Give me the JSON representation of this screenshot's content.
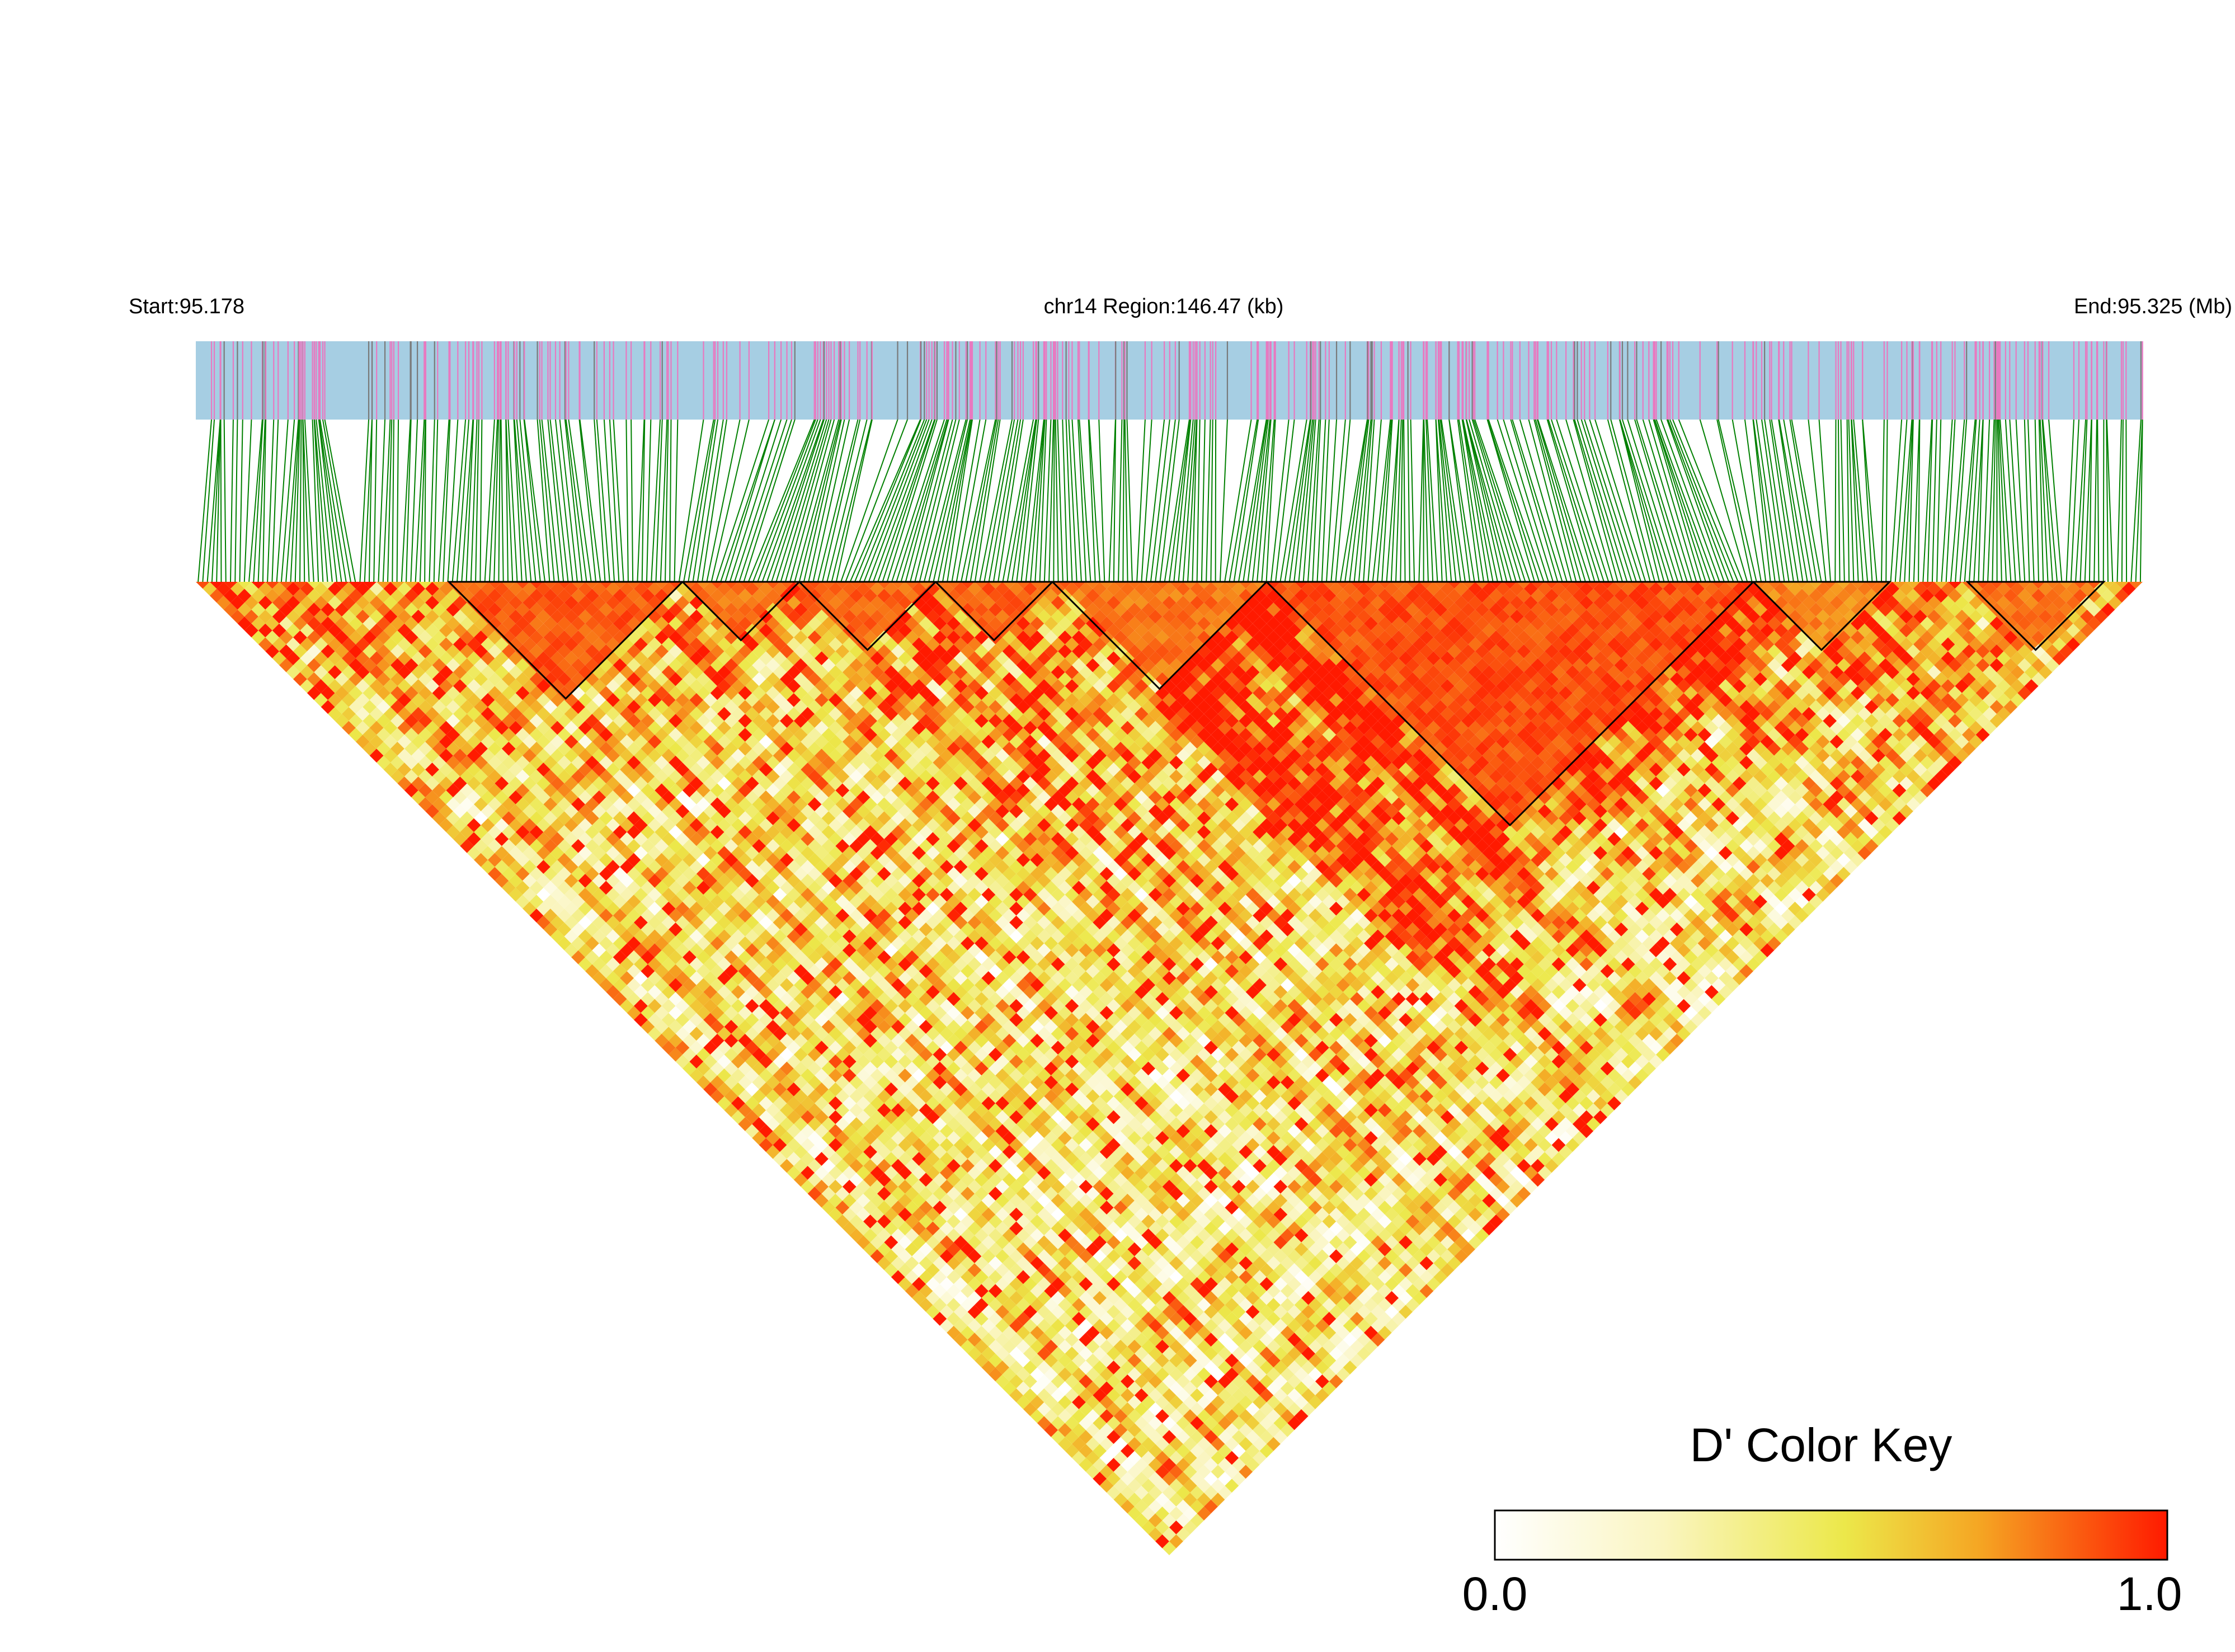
{
  "header": {
    "start_label": "Start:95.178",
    "region_label": "chr14 Region:146.47 (kb)",
    "end_label": "End:95.325 (Mb)"
  },
  "legend": {
    "title": "D' Color Key",
    "min_label": "0.0",
    "max_label": "1.0",
    "colors": [
      "#ffffff",
      "#f2e84a",
      "#f5a623",
      "#ff1a00"
    ]
  },
  "colors": {
    "track_background": "#a6cee3",
    "snp_tick": "#e879c0",
    "snp_tick_alt": "#7a7a7a",
    "connector_line": "#008000",
    "block_outline": "#000000"
  },
  "chart_data": {
    "type": "heatmap",
    "measure": "D'",
    "chromosome": "chr14",
    "region_start_mb": 95.178,
    "region_end_mb": 95.325,
    "region_length_kb": 146.47,
    "value_range": [
      0.0,
      1.0
    ],
    "snp_count_estimate": 420,
    "snp_density_profile": [
      {
        "from": 0.0,
        "to": 0.1,
        "weight": 1.2
      },
      {
        "from": 0.1,
        "to": 0.2,
        "weight": 1.4
      },
      {
        "from": 0.2,
        "to": 0.3,
        "weight": 0.8
      },
      {
        "from": 0.3,
        "to": 0.45,
        "weight": 1.5
      },
      {
        "from": 0.45,
        "to": 0.6,
        "weight": 1.1
      },
      {
        "from": 0.6,
        "to": 0.75,
        "weight": 1.6
      },
      {
        "from": 0.75,
        "to": 0.88,
        "weight": 0.9
      },
      {
        "from": 0.88,
        "to": 1.0,
        "weight": 1.3
      }
    ],
    "high_ld_blocks": [
      {
        "from_frac": 0.13,
        "to_frac": 0.25,
        "mean_dprime": 0.95
      },
      {
        "from_frac": 0.25,
        "to_frac": 0.31,
        "mean_dprime": 0.9
      },
      {
        "from_frac": 0.31,
        "to_frac": 0.38,
        "mean_dprime": 0.92
      },
      {
        "from_frac": 0.38,
        "to_frac": 0.44,
        "mean_dprime": 0.93
      },
      {
        "from_frac": 0.44,
        "to_frac": 0.55,
        "mean_dprime": 0.9
      },
      {
        "from_frac": 0.55,
        "to_frac": 0.8,
        "mean_dprime": 0.97
      },
      {
        "from_frac": 0.8,
        "to_frac": 0.87,
        "mean_dprime": 0.85
      },
      {
        "from_frac": 0.91,
        "to_frac": 0.98,
        "mean_dprime": 0.9
      }
    ],
    "background_mean_dprime": 0.45,
    "grid": false,
    "legend_position": "bottom-right"
  }
}
